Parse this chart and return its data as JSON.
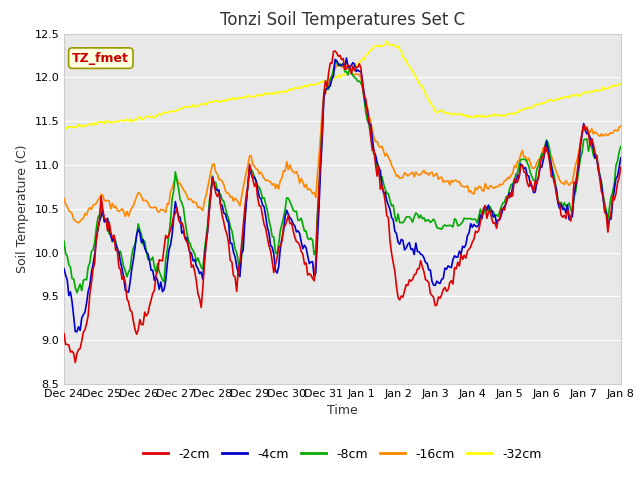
{
  "title": "Tonzi Soil Temperatures Set C",
  "xlabel": "Time",
  "ylabel": "Soil Temperature (C)",
  "annotation": "TZ_fmet",
  "ylim": [
    8.5,
    12.5
  ],
  "xlim": [
    0,
    345
  ],
  "x_tick_labels": [
    "Dec 24",
    "Dec 25",
    "Dec 26",
    "Dec 27",
    "Dec 28",
    "Dec 29",
    "Dec 30",
    "Dec 31",
    "Jan 1",
    "Jan 2",
    "Jan 3",
    "Jan 4",
    "Jan 5",
    "Jan 6",
    "Jan 7",
    "Jan 8"
  ],
  "x_tick_positions": [
    0,
    23,
    46,
    69,
    92,
    115,
    138,
    161,
    184,
    207,
    230,
    253,
    276,
    299,
    322,
    345
  ],
  "colors": {
    "m2cm": "#dd0000",
    "m4cm": "#0000cc",
    "m8cm": "#00aa00",
    "m16cm": "#ff8800",
    "m32cm": "#ffff00"
  },
  "background_color": "#e8e8e8",
  "legend_labels": [
    "-2cm",
    "-4cm",
    "-8cm",
    "-16cm",
    "-32cm"
  ],
  "title_fontsize": 12,
  "axis_fontsize": 9,
  "tick_fontsize": 8,
  "annotation_fontsize": 9
}
